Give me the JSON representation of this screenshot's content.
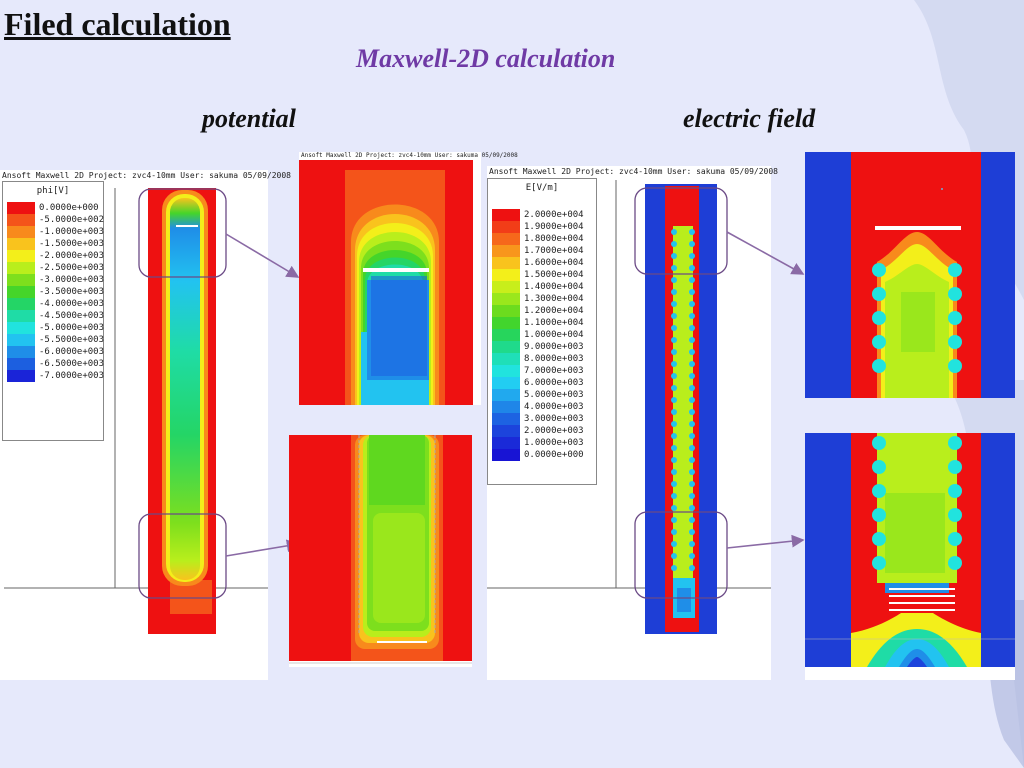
{
  "title": "Filed calculation",
  "subtitle": "Maxwell-2D calculation",
  "col_potential": "potential",
  "col_field": "electric field",
  "potential_panel": {
    "header": "Ansoft Maxwell 2D   Project: zvc4-10mm   User: sakuma   05/09/2008",
    "legend_title": "phi[V]",
    "legend": [
      {
        "label": "0.0000e+000",
        "color": "#ee1111"
      },
      {
        "label": "-5.0000e+002",
        "color": "#f4541a"
      },
      {
        "label": "-1.0000e+003",
        "color": "#f88a1c"
      },
      {
        "label": "-1.5000e+003",
        "color": "#f9c31d"
      },
      {
        "label": "-2.0000e+003",
        "color": "#f3ef1a"
      },
      {
        "label": "-2.5000e+003",
        "color": "#b9ee1c"
      },
      {
        "label": "-3.0000e+003",
        "color": "#7ddf1d"
      },
      {
        "label": "-3.5000e+003",
        "color": "#45d52a"
      },
      {
        "label": "-4.0000e+003",
        "color": "#24d566"
      },
      {
        "label": "-4.5000e+003",
        "color": "#1fdca6"
      },
      {
        "label": "-5.0000e+003",
        "color": "#21e3de"
      },
      {
        "label": "-5.5000e+003",
        "color": "#22c3f0"
      },
      {
        "label": "-6.0000e+003",
        "color": "#1f8ee8"
      },
      {
        "label": "-6.5000e+003",
        "color": "#1c5fe0"
      },
      {
        "label": "-7.0000e+003",
        "color": "#1a24d8"
      }
    ]
  },
  "field_panel": {
    "header": "Ansoft Maxwell 2D   Project: zvc4-10mm   User: sakuma   05/09/2008",
    "legend_title": "E[V/m]",
    "legend": [
      {
        "label": "2.0000e+004",
        "color": "#ee1111"
      },
      {
        "label": "1.9000e+004",
        "color": "#f23d18"
      },
      {
        "label": "1.8000e+004",
        "color": "#f6681b"
      },
      {
        "label": "1.7000e+004",
        "color": "#f8961c"
      },
      {
        "label": "1.6000e+004",
        "color": "#f9c31d"
      },
      {
        "label": "1.5000e+004",
        "color": "#f3ef1a"
      },
      {
        "label": "1.4000e+004",
        "color": "#c8ee1b"
      },
      {
        "label": "1.3000e+004",
        "color": "#9ae71c"
      },
      {
        "label": "1.2000e+004",
        "color": "#6cdc1e"
      },
      {
        "label": "1.1000e+004",
        "color": "#42d52d"
      },
      {
        "label": "1.0000e+004",
        "color": "#27d55c"
      },
      {
        "label": "9.0000e+003",
        "color": "#1fda8b"
      },
      {
        "label": "8.0000e+003",
        "color": "#1fdfb8"
      },
      {
        "label": "7.0000e+003",
        "color": "#21e3de"
      },
      {
        "label": "6.0000e+003",
        "color": "#22cdf2"
      },
      {
        "label": "5.0000e+003",
        "color": "#21a9ee"
      },
      {
        "label": "4.0000e+003",
        "color": "#1f86e8"
      },
      {
        "label": "3.0000e+003",
        "color": "#1d63e2"
      },
      {
        "label": "2.0000e+003",
        "color": "#1c44dc"
      },
      {
        "label": "1.0000e+003",
        "color": "#1a2ad8"
      },
      {
        "label": "0.0000e+000",
        "color": "#1814d4"
      }
    ]
  },
  "colors": {
    "background": "#e6e9fb",
    "accent": "#6f3aa5",
    "red": "#ee1111",
    "blue": "#1e3ed6"
  }
}
